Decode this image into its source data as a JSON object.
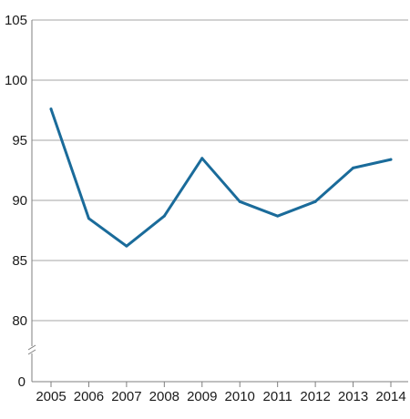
{
  "chart_data": {
    "type": "line",
    "title": "",
    "xlabel": "",
    "ylabel": "",
    "categories": [
      "2005",
      "2006",
      "2007",
      "2008",
      "2009",
      "2010",
      "2011",
      "2012",
      "2013",
      "2014"
    ],
    "series": [
      {
        "values": [
          97.6,
          88.5,
          86.2,
          88.7,
          93.5,
          89.9,
          88.7,
          89.9,
          92.7,
          93.4
        ]
      }
    ],
    "y_ticks": [
      80,
      85,
      90,
      95,
      100,
      105
    ],
    "y_axis_zero_label": "0",
    "ylim": [
      80,
      105
    ],
    "y_axis_break": true,
    "grid": true,
    "legend": "none",
    "colors": {
      "line": "#1a6b9a",
      "grid": "#a6a6a6",
      "axis": "#7f7f7f"
    }
  }
}
